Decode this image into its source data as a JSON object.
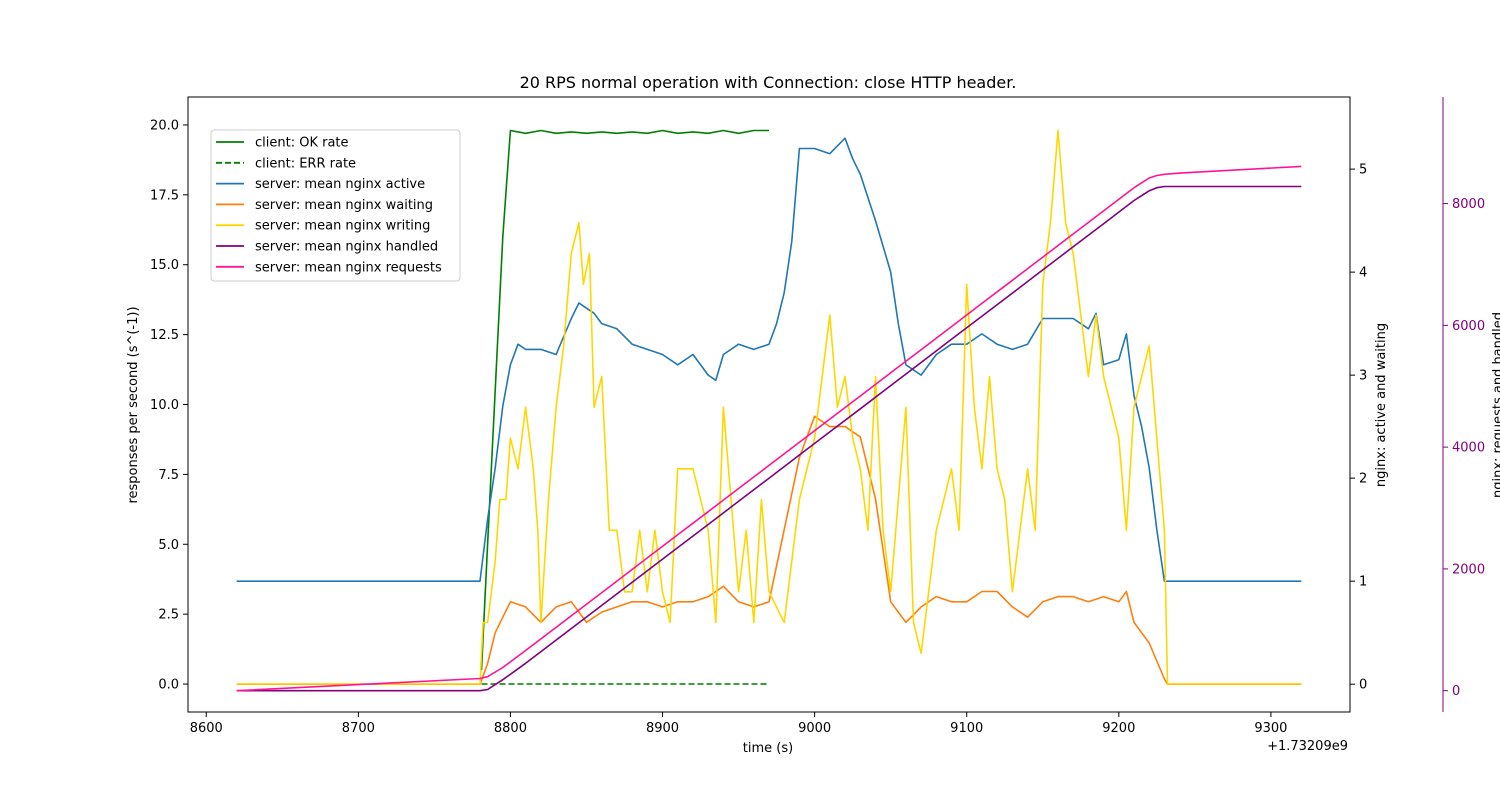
{
  "colors": {
    "ok": "#008000",
    "err": "#008000",
    "active": "#1f77b4",
    "waiting": "#ff7f0e",
    "writing": "#ffd700",
    "handled": "#800080",
    "requests": "#ff1493",
    "right2_axis": "#800080"
  },
  "chart_data": {
    "type": "line",
    "title": "20 RPS normal operation with Connection: close HTTP header.",
    "xlabel": "time (s)",
    "x_offset_label": "+1.73209e9",
    "ylabel_left": "responses per second (s^(-1))",
    "ylabel_right1": "nginx: active and waiting",
    "ylabel_right2": "nginx: requests and handled",
    "xlim": [
      8588,
      9352
    ],
    "ylim_left": [
      -1.0,
      21.0
    ],
    "ylim_right1": [
      -0.27,
      5.7
    ],
    "ylim_right2": [
      -350,
      9750
    ],
    "xticks": [
      8600,
      8700,
      8800,
      8900,
      9000,
      9100,
      9200,
      9300
    ],
    "xtick_labels": [
      "8600",
      "8700",
      "8800",
      "8900",
      "9000",
      "9100",
      "9200",
      "9300"
    ],
    "yticks_left": [
      0.0,
      2.5,
      5.0,
      7.5,
      10.0,
      12.5,
      15.0,
      17.5,
      20.0
    ],
    "ytick_left_labels": [
      "0.0",
      "2.5",
      "5.0",
      "7.5",
      "10.0",
      "12.5",
      "15.0",
      "17.5",
      "20.0"
    ],
    "yticks_right1": [
      0,
      1,
      2,
      3,
      4,
      5
    ],
    "ytick_right1_labels": [
      "0",
      "1",
      "2",
      "3",
      "4",
      "5"
    ],
    "yticks_right2": [
      0,
      2000,
      4000,
      6000,
      8000
    ],
    "ytick_right2_labels": [
      "0",
      "2000",
      "4000",
      "6000",
      "8000"
    ],
    "legend_position": "upper-left",
    "grid": false,
    "series": [
      {
        "name": "client: OK rate",
        "axis": "left",
        "style": "solid",
        "color_key": "ok",
        "x": [
          8781,
          8785,
          8790,
          8795,
          8800,
          8810,
          8820,
          8830,
          8840,
          8850,
          8860,
          8870,
          8880,
          8890,
          8900,
          8910,
          8920,
          8930,
          8940,
          8950,
          8960,
          8970
        ],
        "y": [
          0.5,
          5.0,
          10.5,
          16.0,
          19.8,
          19.7,
          19.8,
          19.7,
          19.75,
          19.7,
          19.75,
          19.7,
          19.75,
          19.7,
          19.8,
          19.7,
          19.75,
          19.7,
          19.8,
          19.7,
          19.8,
          19.8
        ]
      },
      {
        "name": "client: ERR rate",
        "axis": "left",
        "style": "dashed",
        "color_key": "err",
        "x": [
          8781,
          8970
        ],
        "y": [
          0.0,
          0.0
        ]
      },
      {
        "name": "server: mean nginx active",
        "axis": "right1",
        "style": "solid",
        "color_key": "active",
        "x": [
          8620,
          8780,
          8785,
          8790,
          8795,
          8800,
          8805,
          8810,
          8820,
          8830,
          8840,
          8845,
          8850,
          8855,
          8860,
          8870,
          8880,
          8890,
          8900,
          8910,
          8920,
          8930,
          8935,
          8940,
          8950,
          8960,
          8970,
          8975,
          8980,
          8985,
          8990,
          9000,
          9010,
          9020,
          9025,
          9030,
          9040,
          9050,
          9055,
          9060,
          9070,
          9080,
          9090,
          9100,
          9110,
          9120,
          9130,
          9140,
          9150,
          9160,
          9170,
          9180,
          9185,
          9190,
          9200,
          9205,
          9210,
          9215,
          9220,
          9225,
          9230,
          9233,
          9320
        ],
        "y": [
          1.0,
          1.0,
          1.6,
          2.1,
          2.7,
          3.1,
          3.3,
          3.25,
          3.25,
          3.2,
          3.55,
          3.7,
          3.65,
          3.6,
          3.5,
          3.45,
          3.3,
          3.25,
          3.2,
          3.1,
          3.2,
          3.0,
          2.95,
          3.2,
          3.3,
          3.25,
          3.3,
          3.5,
          3.8,
          4.3,
          5.2,
          5.2,
          5.15,
          5.3,
          5.1,
          4.95,
          4.5,
          4.0,
          3.5,
          3.1,
          3.0,
          3.2,
          3.3,
          3.3,
          3.4,
          3.3,
          3.25,
          3.3,
          3.55,
          3.55,
          3.55,
          3.45,
          3.6,
          3.1,
          3.15,
          3.4,
          2.8,
          2.5,
          2.1,
          1.5,
          1.0,
          1.0,
          1.0
        ]
      },
      {
        "name": "server: mean nginx waiting",
        "axis": "right1",
        "style": "solid",
        "color_key": "waiting",
        "x": [
          8620,
          8780,
          8785,
          8790,
          8795,
          8800,
          8810,
          8820,
          8830,
          8840,
          8850,
          8860,
          8870,
          8880,
          8890,
          8900,
          8910,
          8920,
          8930,
          8940,
          8950,
          8960,
          8970,
          8980,
          8990,
          9000,
          9010,
          9020,
          9030,
          9040,
          9050,
          9060,
          9070,
          9080,
          9090,
          9100,
          9110,
          9120,
          9130,
          9140,
          9150,
          9160,
          9170,
          9180,
          9190,
          9200,
          9205,
          9210,
          9220,
          9230,
          9232,
          9320
        ],
        "y": [
          0.0,
          0.0,
          0.2,
          0.5,
          0.65,
          0.8,
          0.75,
          0.6,
          0.75,
          0.8,
          0.6,
          0.7,
          0.75,
          0.8,
          0.8,
          0.75,
          0.8,
          0.8,
          0.85,
          0.95,
          0.8,
          0.75,
          0.8,
          1.5,
          2.2,
          2.6,
          2.5,
          2.5,
          2.4,
          1.8,
          0.8,
          0.6,
          0.75,
          0.85,
          0.8,
          0.8,
          0.9,
          0.9,
          0.75,
          0.65,
          0.8,
          0.85,
          0.85,
          0.8,
          0.85,
          0.8,
          0.9,
          0.6,
          0.4,
          0.05,
          0.0,
          0.0
        ]
      },
      {
        "name": "server: mean nginx writing",
        "axis": "left",
        "style": "solid",
        "color_key": "writing",
        "x": [
          8620,
          8780,
          8782,
          8785,
          8790,
          8793,
          8797,
          8800,
          8805,
          8810,
          8815,
          8818,
          8820,
          8825,
          8830,
          8835,
          8840,
          8845,
          8848,
          8852,
          8855,
          8860,
          8865,
          8870,
          8875,
          8880,
          8885,
          8890,
          8895,
          8900,
          8905,
          8910,
          8915,
          8920,
          8930,
          8935,
          8940,
          8945,
          8950,
          8955,
          8960,
          8965,
          8970,
          8980,
          8990,
          9000,
          9005,
          9010,
          9015,
          9020,
          9025,
          9030,
          9035,
          9040,
          9045,
          9050,
          9055,
          9060,
          9065,
          9070,
          9075,
          9080,
          9090,
          9095,
          9100,
          9105,
          9110,
          9115,
          9120,
          9125,
          9130,
          9140,
          9145,
          9150,
          9155,
          9160,
          9165,
          9170,
          9175,
          9180,
          9185,
          9190,
          9195,
          9200,
          9205,
          9210,
          9215,
          9220,
          9225,
          9230,
          9232,
          9320
        ],
        "y": [
          0.0,
          0.0,
          2.2,
          2.2,
          4.4,
          6.6,
          6.6,
          8.8,
          7.7,
          9.9,
          7.7,
          5.5,
          2.2,
          6.6,
          9.9,
          12.1,
          15.4,
          16.5,
          14.3,
          15.4,
          9.9,
          11.0,
          5.5,
          5.5,
          3.3,
          3.3,
          5.5,
          3.3,
          5.5,
          3.3,
          2.2,
          7.7,
          7.7,
          7.7,
          5.5,
          2.2,
          9.9,
          6.6,
          3.3,
          5.5,
          2.2,
          6.6,
          3.3,
          2.2,
          6.6,
          8.8,
          11.0,
          13.2,
          9.9,
          11.0,
          8.8,
          7.7,
          5.5,
          11.0,
          5.5,
          3.3,
          6.6,
          9.9,
          2.2,
          1.1,
          3.3,
          5.5,
          7.7,
          5.5,
          14.3,
          9.9,
          7.7,
          11.0,
          7.7,
          6.6,
          3.3,
          7.7,
          5.5,
          14.3,
          16.5,
          19.8,
          16.5,
          15.4,
          13.2,
          11.0,
          13.2,
          11.0,
          9.9,
          8.8,
          5.5,
          9.9,
          11.0,
          12.1,
          8.8,
          5.5,
          0.0,
          0.0
        ]
      },
      {
        "name": "server: mean nginx handled",
        "axis": "right2",
        "style": "solid",
        "color_key": "handled",
        "x": [
          8620,
          8780,
          8785,
          8795,
          8810,
          8830,
          8850,
          8870,
          8890,
          8910,
          8930,
          8950,
          8970,
          8990,
          9010,
          9030,
          9050,
          9070,
          9090,
          9110,
          9130,
          9150,
          9170,
          9190,
          9210,
          9220,
          9225,
          9230,
          9240,
          9320
        ],
        "y": [
          0,
          0,
          20,
          180,
          450,
          830,
          1210,
          1590,
          1970,
          2350,
          2730,
          3110,
          3490,
          3870,
          4250,
          4630,
          5010,
          5390,
          5770,
          6150,
          6530,
          6910,
          7290,
          7670,
          8050,
          8210,
          8260,
          8280,
          8280,
          8280
        ]
      },
      {
        "name": "server: mean nginx requests",
        "axis": "right2",
        "style": "solid",
        "color_key": "requests",
        "x": [
          8620,
          8700,
          8780,
          8785,
          8795,
          8810,
          8830,
          8850,
          8870,
          8890,
          8910,
          8930,
          8950,
          8970,
          8990,
          9010,
          9030,
          9050,
          9070,
          9090,
          9110,
          9130,
          9150,
          9170,
          9190,
          9210,
          9220,
          9225,
          9230,
          9240,
          9320
        ],
        "y": [
          0,
          100,
          200,
          230,
          380,
          660,
          1040,
          1420,
          1800,
          2180,
          2560,
          2940,
          3320,
          3700,
          4080,
          4460,
          4840,
          5220,
          5600,
          5980,
          6360,
          6740,
          7120,
          7500,
          7880,
          8260,
          8420,
          8460,
          8480,
          8500,
          8610
        ]
      }
    ]
  }
}
